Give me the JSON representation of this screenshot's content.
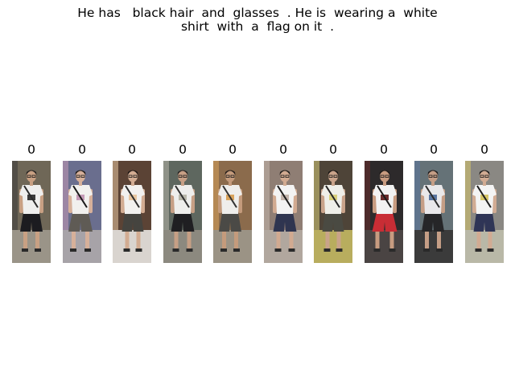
{
  "query": {
    "line1": "He has   black hair  and  glasses  . He is  wearing a  white",
    "line2": "shirt  with  a  flag on it  ."
  },
  "gallery": {
    "items": [
      {
        "label": "0",
        "bg": "#6f6757",
        "floor": "#9a9488",
        "skin": "#c8a083",
        "hair": "#2a2724",
        "shirt": "#efefee",
        "pants": "#1c1c20",
        "bag": "#2b2b2b",
        "accent": "#3b3b3b"
      },
      {
        "label": "0",
        "bg": "#6a6e8e",
        "floor": "#a7a3a8",
        "skin": "#d6b09a",
        "hair": "#25211f",
        "shirt": "#f1f0ee",
        "pants": "#5f5b55",
        "bag": "#1a1a1a",
        "accent": "#c49ab7"
      },
      {
        "label": "0",
        "bg": "#5b4335",
        "floor": "#d9d4cf",
        "skin": "#d2ac92",
        "hair": "#251c18",
        "shirt": "#f2f1ef",
        "pants": "#45443f",
        "bag": "#2c2c2c",
        "accent": "#e7c6a0"
      },
      {
        "label": "0",
        "bg": "#5e675f",
        "floor": "#8c897f",
        "skin": "#c69f85",
        "hair": "#2c2927",
        "shirt": "#eeeeec",
        "pants": "#1f1f22",
        "bag": "#2e2e2e",
        "accent": "#b8b7aa"
      },
      {
        "label": "0",
        "bg": "#8b6b4c",
        "floor": "#9b9385",
        "skin": "#c49b7c",
        "hair": "#2a221e",
        "shirt": "#efeeeb",
        "pants": "#4b4a46",
        "bag": "#333333",
        "accent": "#d9a35b"
      },
      {
        "label": "0",
        "bg": "#8f7e74",
        "floor": "#b1a79e",
        "skin": "#d1aa91",
        "hair": "#25211f",
        "shirt": "#f3f3f3",
        "pants": "#2f3550",
        "bag": "#1d1d1d",
        "accent": "#c4b6ad"
      },
      {
        "label": "0",
        "bg": "#4e4438",
        "floor": "#b8ad5e",
        "skin": "#c9a38a",
        "hair": "#201b18",
        "shirt": "#efefe9",
        "pants": "#4a4a42",
        "bag": "#242424",
        "accent": "#d8cf7c"
      },
      {
        "label": "0",
        "bg": "#2d2a2b",
        "floor": "#4a4443",
        "skin": "#c79b80",
        "hair": "#1d1a18",
        "shirt": "#f2f2f2",
        "pants": "#c82d35",
        "bag": "#1b1b1b",
        "accent": "#6a2c2c"
      },
      {
        "label": "0",
        "bg": "#657277",
        "floor": "#3b3b3b",
        "skin": "#c59e86",
        "hair": "#272322",
        "shirt": "#e9e8ea",
        "pants": "#262628",
        "bag": "#2a2a2a",
        "accent": "#5b76a0"
      },
      {
        "label": "0",
        "bg": "#8a8883",
        "floor": "#b9b8a7",
        "skin": "#d1ab93",
        "hair": "#22201f",
        "shirt": "#f4f4f4",
        "pants": "#2f3556",
        "bag": "#1e1e1e",
        "accent": "#d7c66a"
      }
    ]
  }
}
